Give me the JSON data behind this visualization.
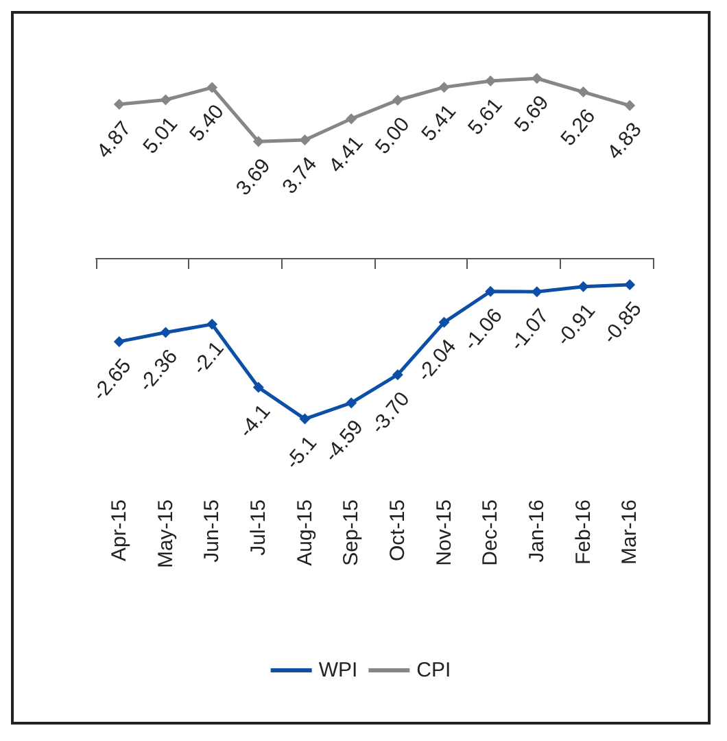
{
  "chart_data": {
    "type": "line",
    "categories": [
      "Apr-15",
      "May-15",
      "Jun-15",
      "Jul-15",
      "Aug-15",
      "Sep-15",
      "Oct-15",
      "Nov-15",
      "Dec-15",
      "Jan-16",
      "Feb-16",
      "Mar-16"
    ],
    "series": [
      {
        "name": "WPI",
        "color": "#0d4ea6",
        "values": [
          -2.65,
          -2.36,
          -2.1,
          -4.1,
          -5.1,
          -4.59,
          -3.7,
          -2.04,
          -1.06,
          -1.07,
          -0.91,
          -0.85
        ],
        "value_labels": [
          "-2.65",
          "-2.36",
          "-2.1",
          "-4.1",
          "-5.1",
          "-4.59",
          "-3.70",
          "-2.04",
          "-1.06",
          "-1.07",
          "-0.91",
          "-0.85"
        ]
      },
      {
        "name": "CPI",
        "color": "#868686",
        "values": [
          4.87,
          5.01,
          5.4,
          3.69,
          3.74,
          4.41,
          5.0,
          5.41,
          5.61,
          5.69,
          5.26,
          4.83
        ],
        "value_labels": [
          "4.87",
          "5.01",
          "5.40",
          "3.69",
          "3.74",
          "4.41",
          "5.00",
          "5.41",
          "5.61",
          "5.69",
          "5.26",
          "4.83"
        ]
      }
    ],
    "legend": "bottom",
    "marker": "diamond",
    "tick_labels": "x",
    "grid": false
  }
}
